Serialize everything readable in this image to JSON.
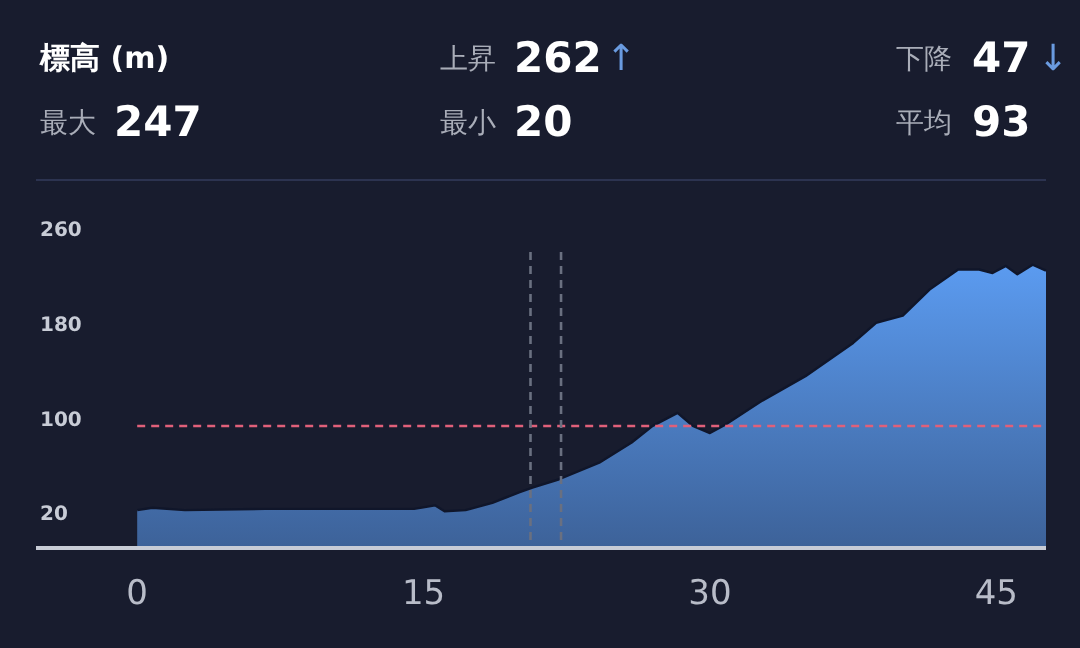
{
  "chart_data": [
    {
      "type": "other",
      "title": "標高 (m)",
      "annotations": [
        "最大",
        "247",
        "上昇",
        "262",
        "↑",
        "最小",
        "20",
        "下降",
        "47",
        "↓",
        "平均",
        "93"
      ]
    },
    {
      "type": "area",
      "x": [
        0,
        0.8,
        2.5,
        6.7,
        12,
        14.5,
        15.6,
        16.1,
        17.2,
        18.6,
        20.0,
        20.7,
        22.1,
        24.2,
        25.9,
        27.0,
        28.3,
        29.1,
        30.0,
        30.8,
        32.6,
        35.0,
        37.5,
        38.7,
        40.1,
        41.5,
        43.0,
        44.1,
        44.8,
        45.5,
        46.1,
        46.9,
        47.6
      ],
      "series": [
        {
          "color": "#5b9bf0",
          "values": [
            22,
            24,
            22,
            23,
            23,
            23,
            26,
            21,
            22,
            28,
            37,
            41,
            48,
            62,
            79,
            93,
            104,
            93,
            87,
            94,
            113,
            135,
            163,
            180,
            186,
            208,
            225,
            225,
            222,
            228,
            221,
            229,
            224
          ]
        }
      ],
      "xlim": [
        -5.3,
        47.6
      ],
      "ylim": [
        -10,
        260
      ],
      "xticks": [
        0,
        15,
        30,
        45
      ],
      "yticks": [
        20,
        100,
        180,
        260
      ],
      "grid": false,
      "ref_lines": [
        {
          "axis": "y",
          "value": 93,
          "color": "#e0607a",
          "line_style": "dashed"
        },
        {
          "axis": "x",
          "value": 20.6,
          "color": "#6a7080",
          "line_style": "dashed"
        },
        {
          "axis": "x",
          "value": 22.2,
          "color": "#6a7080",
          "line_style": "dashed"
        }
      ]
    }
  ]
}
